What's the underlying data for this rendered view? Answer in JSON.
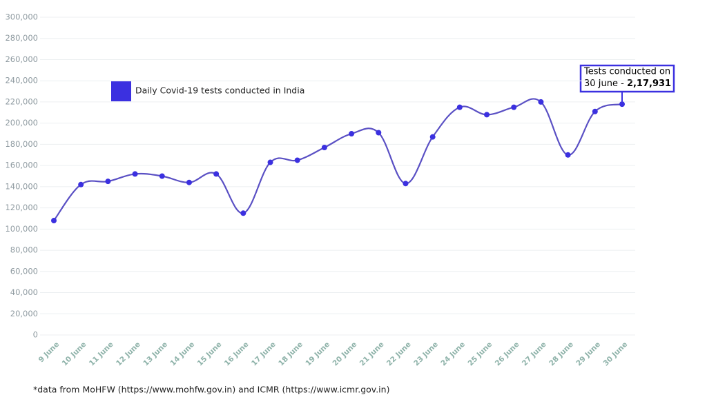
{
  "chart_data": {
    "type": "line",
    "categories": [
      "9 June",
      "10 June",
      "11 June",
      "12 June",
      "13 June",
      "14 June",
      "15 June",
      "16 June",
      "17 June",
      "18 June",
      "19 June",
      "20 June",
      "21 June",
      "22 June",
      "23 June",
      "24 June",
      "25 June",
      "26 June",
      "27 June",
      "28 June",
      "29 June",
      "30 June"
    ],
    "series": [
      {
        "name": "Daily Covid-19 tests conducted in India",
        "color": "#3b30e0",
        "line_color": "#5a50c4",
        "values": [
          108000,
          142000,
          145000,
          152000,
          150000,
          144000,
          152000,
          115000,
          163000,
          165000,
          177000,
          190000,
          191000,
          143000,
          187000,
          215000,
          208000,
          215000,
          220000,
          170000,
          211000,
          217931
        ],
        "value_labels": [
          null,
          null,
          null,
          null,
          null,
          null,
          null,
          null,
          null,
          null,
          null,
          null,
          null,
          null,
          null,
          null,
          null,
          null,
          null,
          null,
          null,
          "2,17,931"
        ]
      }
    ],
    "ylim": [
      0,
      300000
    ],
    "yticks": [
      0,
      {
        "value": 20000,
        "label": "20,000"
      },
      {
        "value": 40000,
        "label": "40,000"
      },
      {
        "value": 60000,
        "label": "60,000"
      },
      {
        "value": 80000,
        "label": "80,000"
      },
      {
        "value": 100000,
        "label": "100,000"
      },
      {
        "value": 120000,
        "label": "120,000"
      },
      {
        "value": 140000,
        "label": "140,000"
      },
      {
        "value": 160000,
        "label": "160,000"
      },
      {
        "value": 180000,
        "label": "180,000"
      },
      {
        "value": 200000,
        "label": "200,000"
      },
      {
        "value": 220000,
        "label": "220,000"
      },
      {
        "value": 240000,
        "label": "240,000"
      },
      {
        "value": 260000,
        "label": "260,000"
      },
      {
        "value": 280000,
        "label": "280,000"
      },
      {
        "value": 300000,
        "label": "300,000"
      }
    ],
    "grid": true,
    "annotation": [
      "Tests conducted on",
      "30 June -"
    ],
    "footnote": "*data from MoHFW (https://www.mohfw.gov.in) and ICMR (https://www.icmr.gov.in)"
  }
}
